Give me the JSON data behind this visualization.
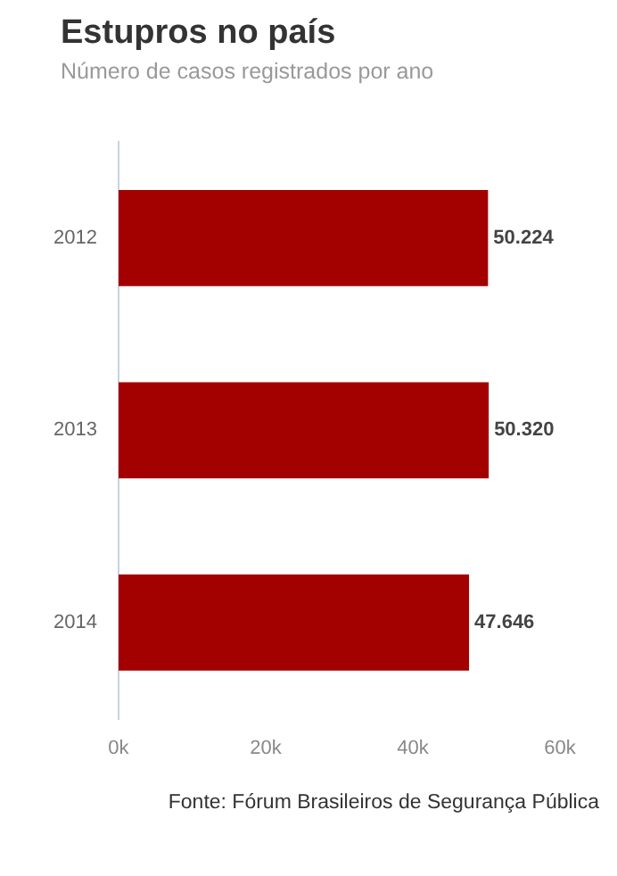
{
  "chart_data": {
    "type": "bar",
    "title": "Estupros no país",
    "subtitle": "Número de casos registrados por ano",
    "orientation": "horizontal",
    "categories": [
      "2012",
      "2013",
      "2014"
    ],
    "values": [
      50224,
      50320,
      47646
    ],
    "color": "#a30000",
    "value_labels": [
      "50.224",
      "50.320",
      "47.646"
    ],
    "xlim": [
      0,
      60000
    ],
    "xticks": [
      {
        "value": 0,
        "label": "0k"
      },
      {
        "value": 20000,
        "label": "20k"
      },
      {
        "value": 40000,
        "label": "40k"
      },
      {
        "value": 60000,
        "label": "60k"
      }
    ],
    "grid": false,
    "legend": false,
    "annotations": [
      "Fonte: Fórum Brasileiros de Segurança Pública"
    ]
  }
}
